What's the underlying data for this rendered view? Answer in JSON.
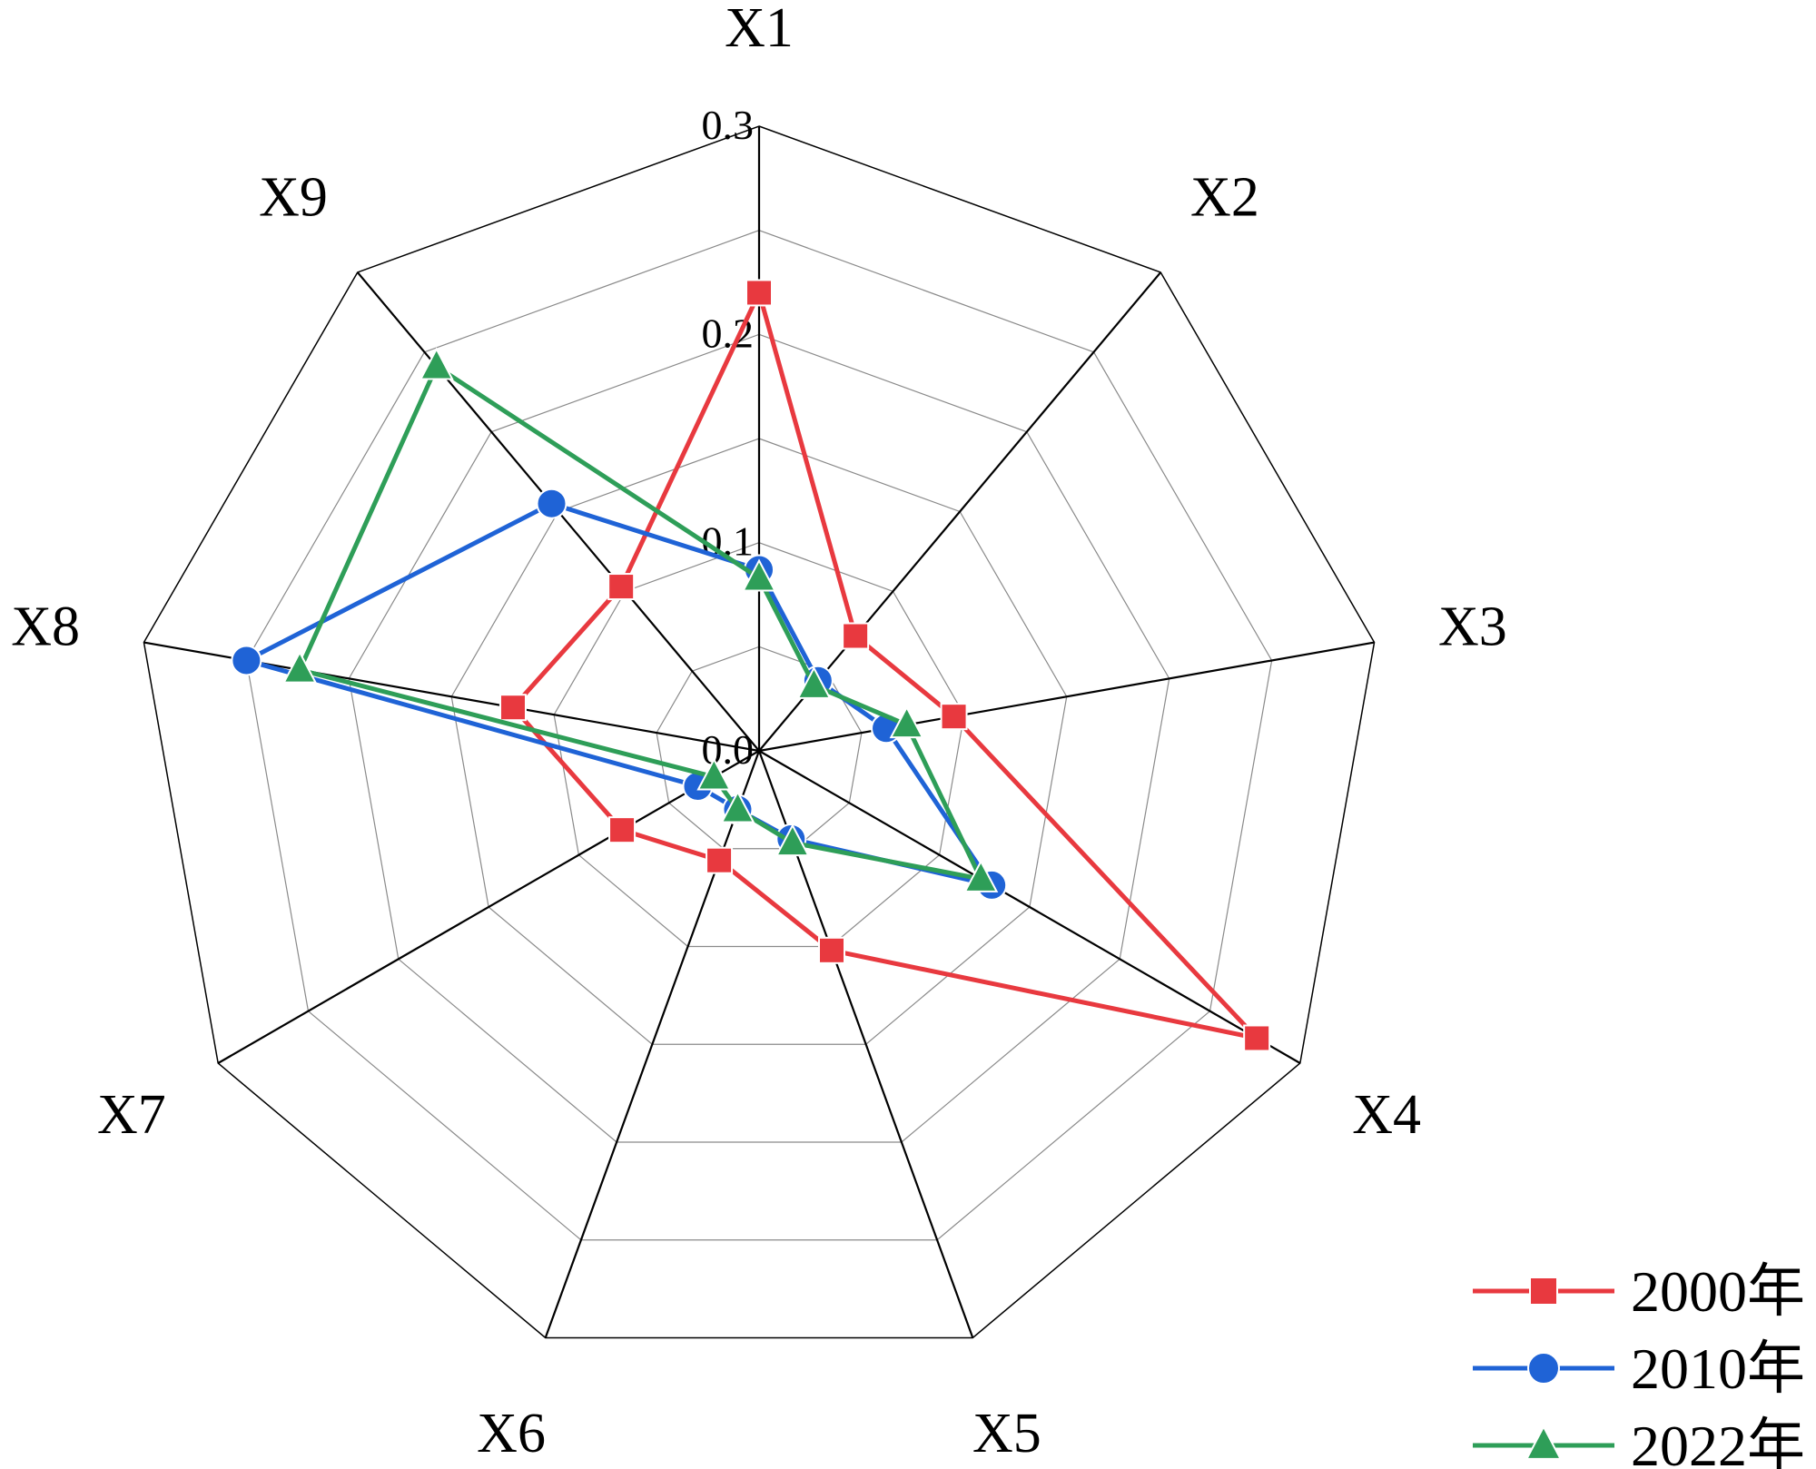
{
  "chart_data": {
    "type": "radar",
    "title": "",
    "axes": [
      "X1",
      "X2",
      "X3",
      "X4",
      "X5",
      "X6",
      "X7",
      "X8",
      "X9"
    ],
    "rlim": [
      0,
      0.3
    ],
    "ticks": [
      {
        "value": 0.0,
        "label": "0.0"
      },
      {
        "value": 0.1,
        "label": "0.1"
      },
      {
        "value": 0.2,
        "label": "0.2"
      },
      {
        "value": 0.3,
        "label": "0.3"
      }
    ],
    "grid_levels": [
      0.05,
      0.1,
      0.15,
      0.2,
      0.25,
      0.3
    ],
    "grid": true,
    "legend_position": "bottom-right",
    "series": [
      {
        "name": "2000年",
        "color": "#e8393f",
        "marker": "square",
        "values": [
          0.22,
          0.072,
          0.095,
          0.276,
          0.102,
          0.056,
          0.076,
          0.12,
          0.103
        ]
      },
      {
        "name": "2010年",
        "color": "#1f63d6",
        "marker": "circle",
        "values": [
          0.087,
          0.044,
          0.062,
          0.129,
          0.045,
          0.03,
          0.034,
          0.25,
          0.155
        ]
      },
      {
        "name": "2022年",
        "color": "#2e9e58",
        "marker": "triangle",
        "values": [
          0.083,
          0.041,
          0.072,
          0.123,
          0.047,
          0.03,
          0.025,
          0.224,
          0.241
        ]
      }
    ]
  }
}
